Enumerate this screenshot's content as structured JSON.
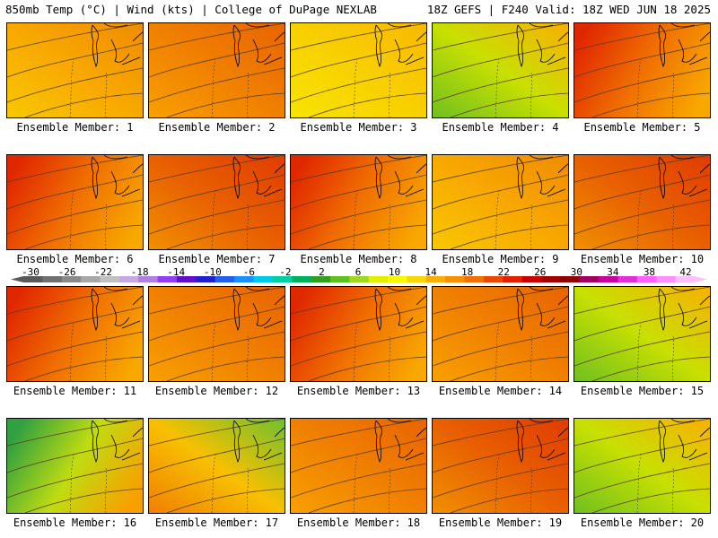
{
  "header": {
    "left": "850mb Temp (°C) | Wind (kts) | College of DuPage NEXLAB",
    "right": "18Z GEFS | F240 Valid: 18Z WED JUN 18 2025"
  },
  "colorbar": {
    "labels": [
      "-30",
      "-26",
      "-22",
      "-18",
      "-14",
      "-10",
      "-6",
      "-2",
      "2",
      "6",
      "10",
      "14",
      "18",
      "22",
      "26",
      "30",
      "34",
      "38",
      "42"
    ],
    "colors": [
      "#5a5a5a",
      "#707070",
      "#8a8a8a",
      "#a8a8a8",
      "#c0c0c0",
      "#c8a8e0",
      "#b080e0",
      "#9040f0",
      "#6010c8",
      "#2020d0",
      "#2060f0",
      "#1890ff",
      "#00c8e8",
      "#00d0a0",
      "#00b060",
      "#30a020",
      "#60c020",
      "#a0d820",
      "#e0f000",
      "#f8f800",
      "#f8d800",
      "#f8b000",
      "#f89000",
      "#f07000",
      "#e84800",
      "#e02000",
      "#c80000",
      "#a00000",
      "#900000",
      "#a00060",
      "#c800a0",
      "#e030d8",
      "#ff60ff",
      "#ff90ff",
      "#ffc0ff"
    ]
  },
  "panels": [
    {
      "label": "Ensemble Member: 1",
      "scheme": "yellow-orange"
    },
    {
      "label": "Ensemble Member: 2",
      "scheme": "orange"
    },
    {
      "label": "Ensemble Member: 3",
      "scheme": "yellow"
    },
    {
      "label": "Ensemble Member: 4",
      "scheme": "green-yellow"
    },
    {
      "label": "Ensemble Member: 5",
      "scheme": "red-west"
    },
    {
      "label": "Ensemble Member: 6",
      "scheme": "red-west"
    },
    {
      "label": "Ensemble Member: 7",
      "scheme": "orange-red"
    },
    {
      "label": "Ensemble Member: 8",
      "scheme": "red-west"
    },
    {
      "label": "Ensemble Member: 9",
      "scheme": "yellow-orange"
    },
    {
      "label": "Ensemble Member: 10",
      "scheme": "orange-red"
    },
    {
      "label": "Ensemble Member: 11",
      "scheme": "red-west"
    },
    {
      "label": "Ensemble Member: 12",
      "scheme": "orange"
    },
    {
      "label": "Ensemble Member: 13",
      "scheme": "red-west"
    },
    {
      "label": "Ensemble Member: 14",
      "scheme": "orange"
    },
    {
      "label": "Ensemble Member: 15",
      "scheme": "green-yellow"
    },
    {
      "label": "Ensemble Member: 16",
      "scheme": "green-west"
    },
    {
      "label": "Ensemble Member: 17",
      "scheme": "orange-green"
    },
    {
      "label": "Ensemble Member: 18",
      "scheme": "orange"
    },
    {
      "label": "Ensemble Member: 19",
      "scheme": "orange-red"
    },
    {
      "label": "Ensemble Member: 20",
      "scheme": "green-yellow"
    }
  ]
}
